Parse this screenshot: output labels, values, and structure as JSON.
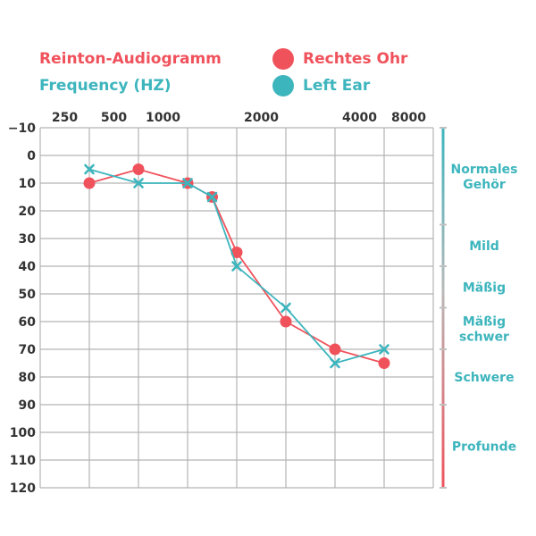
{
  "colors": {
    "right": "#f0525c",
    "left": "#3db5bd",
    "grid": "#b3b3b3",
    "axis_text": "#333333"
  },
  "header": {
    "title": "Reinton-Audiogramm",
    "subtitle": "Frequency (HZ)",
    "legend": [
      {
        "label": "Rechtes Ohr",
        "color": "#f0525c"
      },
      {
        "label": "Left Ear",
        "color": "#3db5bd"
      }
    ]
  },
  "chart_data": {
    "type": "line",
    "title": "Reinton-Audiogramm",
    "xlabel": "Frequency (HZ)",
    "ylabel": "",
    "x_ticks": [
      "250",
      "500",
      "1000",
      "2000",
      "4000",
      "8000"
    ],
    "x_tick_positions": [
      0,
      1,
      2,
      4,
      6,
      7
    ],
    "x_grid_count": 8,
    "y_ticks": [
      -10,
      0,
      10,
      20,
      30,
      40,
      50,
      60,
      70,
      80,
      90,
      100,
      110,
      120
    ],
    "ylim": [
      -10,
      120
    ],
    "series": [
      {
        "name": "Rechtes Ohr",
        "marker": "circle",
        "color": "#f0525c",
        "points": [
          {
            "x": 1,
            "y": 10
          },
          {
            "x": 2,
            "y": 5
          },
          {
            "x": 3,
            "y": 10
          },
          {
            "x": 3.5,
            "y": 15
          },
          {
            "x": 4,
            "y": 35
          },
          {
            "x": 5,
            "y": 60
          },
          {
            "x": 6,
            "y": 70
          },
          {
            "x": 7,
            "y": 75
          }
        ]
      },
      {
        "name": "Left Ear",
        "marker": "x",
        "color": "#3db5bd",
        "points": [
          {
            "x": 1,
            "y": 5
          },
          {
            "x": 2,
            "y": 10
          },
          {
            "x": 3,
            "y": 10
          },
          {
            "x": 3.5,
            "y": 15
          },
          {
            "x": 4,
            "y": 40
          },
          {
            "x": 5,
            "y": 55
          },
          {
            "x": 6,
            "y": 75
          },
          {
            "x": 7,
            "y": 70
          }
        ]
      }
    ],
    "bands": [
      {
        "label_lines": [
          "Normales",
          "Gehör"
        ],
        "from": -10,
        "to": 25
      },
      {
        "label_lines": [
          "Mild"
        ],
        "from": 25,
        "to": 40
      },
      {
        "label_lines": [
          "Mäßig"
        ],
        "from": 40,
        "to": 55
      },
      {
        "label_lines": [
          "Mäßig",
          "schwer"
        ],
        "from": 55,
        "to": 70
      },
      {
        "label_lines": [
          "Schwere"
        ],
        "from": 70,
        "to": 90
      },
      {
        "label_lines": [
          "Profunde"
        ],
        "from": 90,
        "to": 120
      }
    ]
  }
}
